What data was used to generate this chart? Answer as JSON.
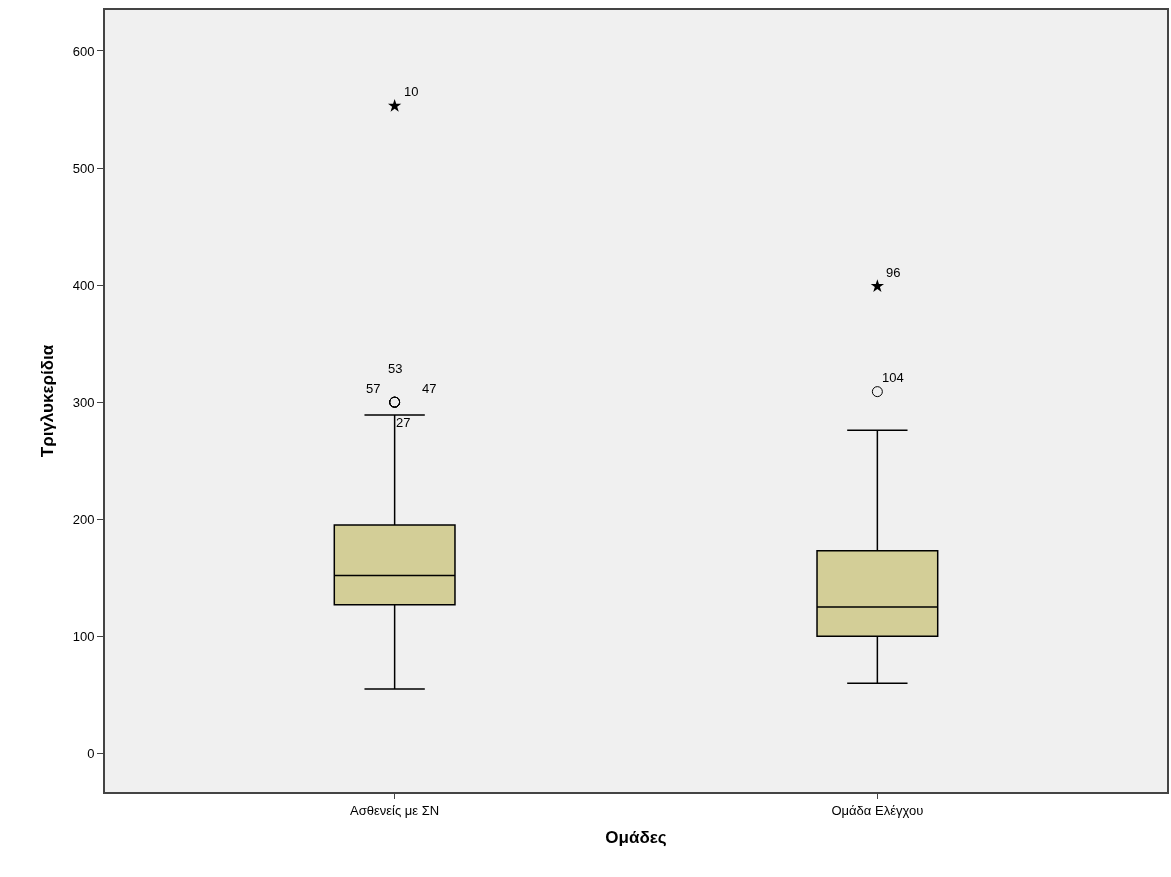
{
  "chart_data": {
    "type": "box",
    "xlabel": "Ομάδες",
    "ylabel": "Τριγλυκερίδια",
    "categories": [
      "Ασθενείς με ΣΝ",
      "Ομάδα Ελέγχου"
    ],
    "boxes": [
      {
        "low": 55,
        "q1": 127,
        "median": 152,
        "q3": 195,
        "high": 289
      },
      {
        "low": 60,
        "q1": 100,
        "median": 125,
        "q3": 173,
        "high": 276
      }
    ],
    "color": "#d3ce97",
    "series": [
      {
        "type": "scatter",
        "marker": "star",
        "color": "#000000",
        "x": [
          "Ασθενείς με ΣΝ",
          "Ομάδα Ελέγχου"
        ],
        "values": [
          553,
          399
        ]
      },
      {
        "type": "scatter",
        "marker": "circle",
        "color": "#000000",
        "x": [
          "Ασθενείς με ΣΝ",
          "Ασθενείς με ΣΝ",
          "Ασθενείς με ΣΝ",
          "Ασθενείς με ΣΝ",
          "Ομάδα Ελέγχου"
        ],
        "values": [
          300,
          300,
          300,
          300,
          309
        ]
      }
    ],
    "annotations": [
      {
        "text": "10",
        "x": "Ασθενείς με ΣΝ",
        "y": 553
      },
      {
        "text": "57",
        "x": "Ασθενείς με ΣΝ",
        "y": 300
      },
      {
        "text": "53",
        "x": "Ασθενείς με ΣΝ",
        "y": 300
      },
      {
        "text": "47",
        "x": "Ασθενείς με ΣΝ",
        "y": 300
      },
      {
        "text": "27",
        "x": "Ασθενείς με ΣΝ",
        "y": 300
      },
      {
        "text": "96",
        "x": "Ομάδα Ελέγχου",
        "y": 399
      },
      {
        "text": "104",
        "x": "Ομάδα Ελέγχου",
        "y": 309
      }
    ],
    "ylim": [
      -33,
      635
    ],
    "yticks": [
      0,
      100,
      200,
      300,
      400,
      500,
      600
    ],
    "grid": false
  }
}
